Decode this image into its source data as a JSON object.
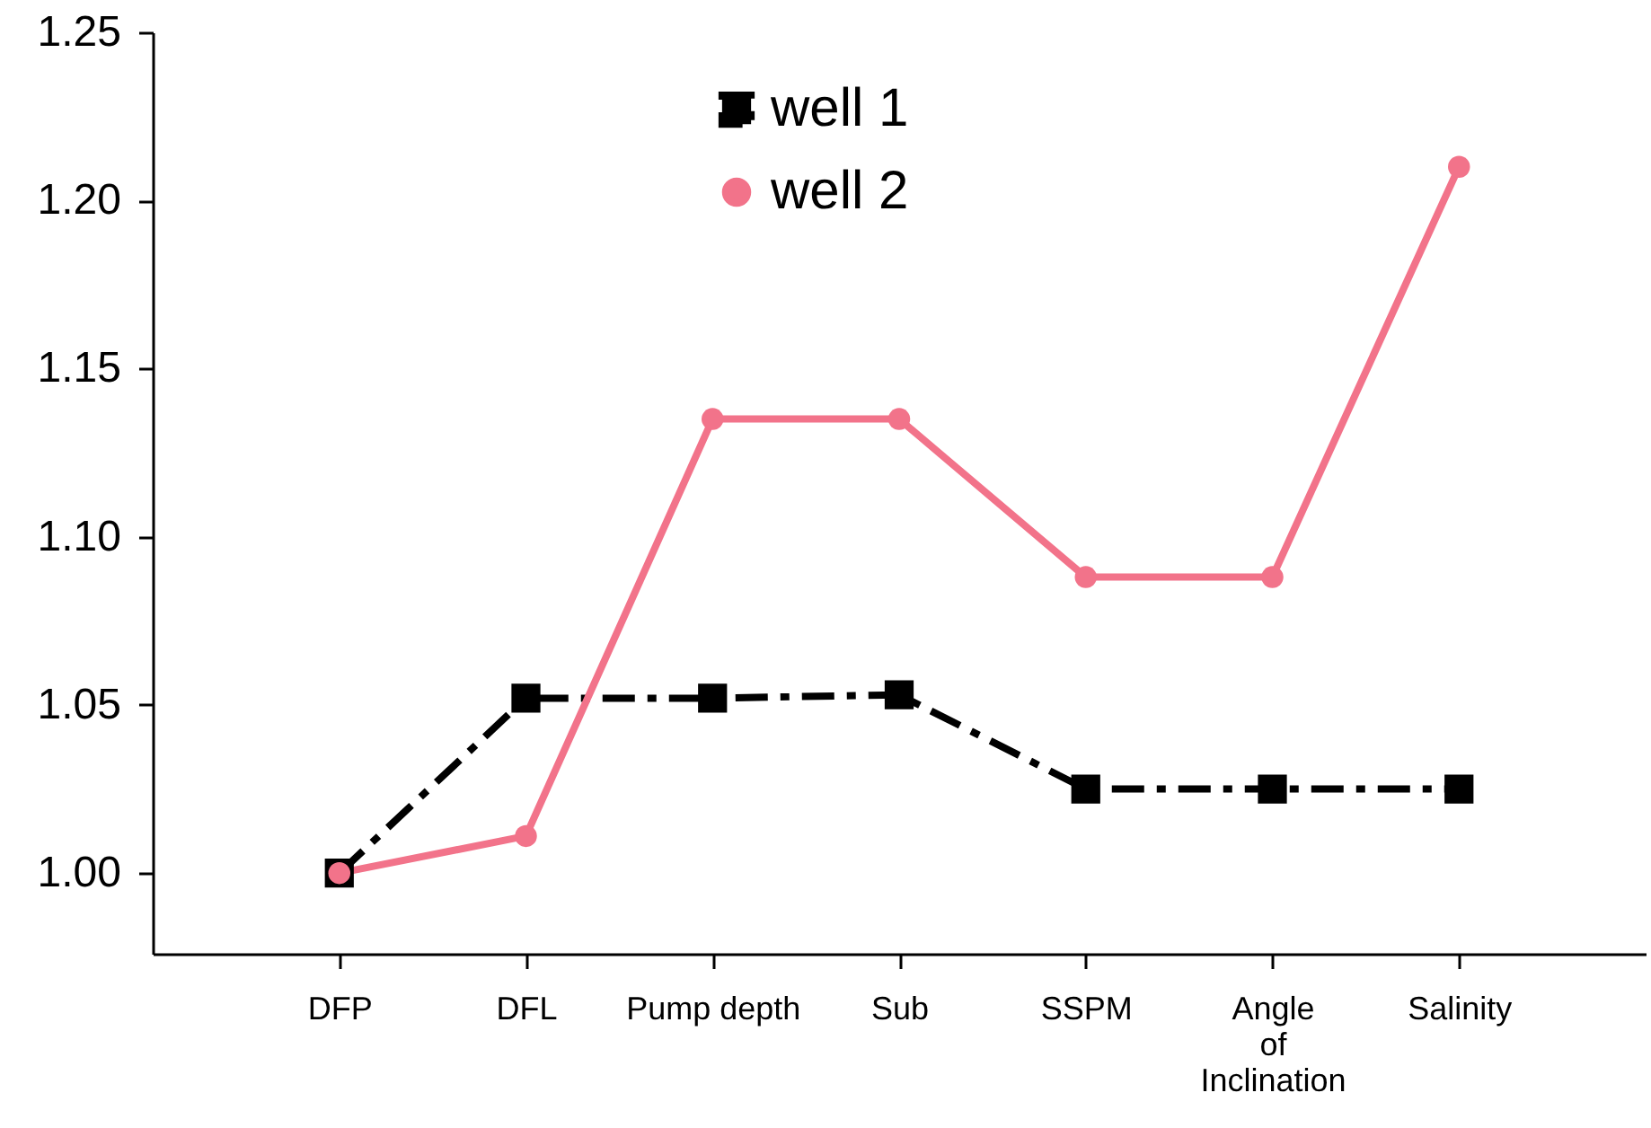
{
  "chart_data": {
    "type": "line",
    "categories": [
      "DFP",
      "DFL",
      "Pump depth",
      "Sub",
      "SSPM",
      "Angle of Inclination",
      "Salinity"
    ],
    "series": [
      {
        "name": "well 1",
        "color": "#000000",
        "line_style": "dashdot",
        "marker": "square",
        "values": [
          1.0,
          1.052,
          1.052,
          1.053,
          1.025,
          1.025,
          1.025
        ]
      },
      {
        "name": "well 2",
        "color": "#f2738a",
        "line_style": "solid",
        "marker": "circle",
        "values": [
          1.0,
          1.011,
          1.135,
          1.135,
          1.088,
          1.088,
          1.21
        ]
      }
    ],
    "ylim": [
      0.976,
      1.25
    ],
    "yticks": [
      {
        "value": 1.0,
        "label": "1.00"
      },
      {
        "value": 1.05,
        "label": "1.05"
      },
      {
        "value": 1.1,
        "label": "1.10"
      },
      {
        "value": 1.15,
        "label": "1.15"
      },
      {
        "value": 1.2,
        "label": "1.20"
      },
      {
        "value": 1.25,
        "label": "1.25"
      }
    ],
    "grid": false,
    "legend": "top"
  }
}
